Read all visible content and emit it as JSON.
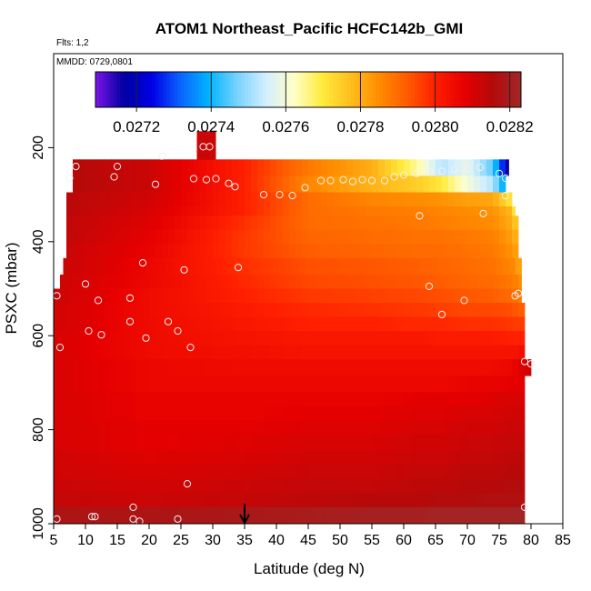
{
  "chart_data": {
    "type": "heatmap",
    "title": "ATOM1 Northeast_Pacific HCFC142b_GMI",
    "flights_label": "Flts: 1,2",
    "mmdd_label": "MMDD: 0729,0801",
    "xlabel": "Latitude (deg N)",
    "ylabel": "PSXC (mbar)",
    "xlim": [
      5,
      85
    ],
    "ylim": [
      1000,
      0
    ],
    "x_ticks": [
      "5",
      "10",
      "15",
      "20",
      "25",
      "30",
      "35",
      "40",
      "45",
      "50",
      "55",
      "60",
      "65",
      "70",
      "75",
      "80",
      "85"
    ],
    "y_ticks": [
      "200",
      "400",
      "600",
      "800",
      "1000"
    ],
    "colorbar": {
      "min": 0.02709,
      "max": 0.02823,
      "tick_values": [
        0.0272,
        0.0274,
        0.0276,
        0.0278,
        0.028,
        0.0282
      ],
      "tick_labels": [
        "0.0272",
        "0.0274",
        "0.0276",
        "0.0278",
        "0.0280",
        "0.0282"
      ],
      "colors": [
        "#7b14e8",
        "#0000a0",
        "#0000e6",
        "#0a64ff",
        "#00b4ff",
        "#78d2ff",
        "#d2eeff",
        "#ffffc8",
        "#ffeb3c",
        "#ffbe1e",
        "#ff8c00",
        "#ff5a00",
        "#ff1e00",
        "#e60000",
        "#b40a0a",
        "#a02828"
      ]
    },
    "marker_latitude": 35,
    "pressure_levels": [
      225,
      260,
      295,
      325,
      345,
      375,
      405,
      435,
      470,
      500,
      530,
      560,
      590,
      620,
      650,
      685,
      720,
      750,
      780,
      810,
      845,
      875,
      905,
      935,
      965,
      1000
    ],
    "lat_extent_by_level": [
      [
        8,
        76.5
      ],
      [
        8,
        76
      ],
      [
        7,
        77
      ],
      [
        7,
        77.5
      ],
      [
        7,
        78
      ],
      [
        7,
        78
      ],
      [
        7,
        78
      ],
      [
        6.5,
        78.5
      ],
      [
        6,
        78.5
      ],
      [
        5,
        78.5
      ],
      [
        5,
        79
      ],
      [
        5,
        79
      ],
      [
        5,
        79
      ],
      [
        5,
        79
      ],
      [
        5,
        80
      ],
      [
        5,
        79
      ],
      [
        5,
        79
      ],
      [
        5,
        79
      ],
      [
        5,
        79
      ],
      [
        5,
        79
      ],
      [
        5,
        79
      ],
      [
        5,
        79
      ],
      [
        5,
        79
      ],
      [
        5,
        79
      ],
      [
        5,
        79
      ]
    ],
    "lat_breakpoints": [
      5,
      20,
      35,
      45,
      55,
      62,
      66,
      70,
      74,
      77,
      80
    ],
    "value_rows": [
      [
        0.02816,
        0.02812,
        0.028,
        0.02788,
        0.0278,
        0.02765,
        0.02752,
        0.02758,
        0.02745,
        0.0271,
        0.0271
      ],
      [
        0.02816,
        0.02812,
        0.028,
        0.02786,
        0.02779,
        0.02775,
        0.0277,
        0.0276,
        0.02752,
        0.02728,
        0.02728
      ],
      [
        0.02815,
        0.02811,
        0.028,
        0.0279,
        0.02786,
        0.02785,
        0.02784,
        0.02782,
        0.02781,
        0.0277,
        0.0273
      ],
      [
        0.02815,
        0.0281,
        0.028,
        0.0279,
        0.02788,
        0.02787,
        0.02786,
        0.02785,
        0.02784,
        0.02778,
        0.0274
      ],
      [
        0.02814,
        0.02809,
        0.02798,
        0.0279,
        0.02789,
        0.02788,
        0.02787,
        0.02786,
        0.02785,
        0.0278,
        0.0276
      ],
      [
        0.02814,
        0.02808,
        0.02797,
        0.02791,
        0.0279,
        0.02789,
        0.02789,
        0.02788,
        0.02787,
        0.02782,
        0.0277
      ],
      [
        0.02813,
        0.02807,
        0.02797,
        0.02792,
        0.02791,
        0.0279,
        0.0279,
        0.02789,
        0.02788,
        0.02784,
        0.02775
      ],
      [
        0.02813,
        0.02806,
        0.02798,
        0.02794,
        0.02793,
        0.02792,
        0.02791,
        0.0279,
        0.02789,
        0.02786,
        0.02775
      ],
      [
        0.02812,
        0.02806,
        0.02799,
        0.02795,
        0.02794,
        0.02793,
        0.02792,
        0.02791,
        0.0279,
        0.02788,
        0.02782
      ],
      [
        0.02812,
        0.02805,
        0.028,
        0.02797,
        0.02796,
        0.02795,
        0.02794,
        0.02793,
        0.02792,
        0.0279,
        0.02786
      ],
      [
        0.02811,
        0.02805,
        0.02801,
        0.02799,
        0.02798,
        0.02797,
        0.02796,
        0.02795,
        0.02795,
        0.02794,
        0.0279
      ],
      [
        0.02811,
        0.02805,
        0.02802,
        0.028,
        0.028,
        0.02799,
        0.02799,
        0.02798,
        0.02798,
        0.02797,
        0.02796
      ],
      [
        0.0281,
        0.02805,
        0.02803,
        0.02802,
        0.02802,
        0.02802,
        0.02801,
        0.02801,
        0.02801,
        0.028,
        0.028
      ],
      [
        0.0281,
        0.02805,
        0.02804,
        0.02803,
        0.02803,
        0.02803,
        0.02803,
        0.02803,
        0.02803,
        0.02803,
        0.02805
      ],
      [
        0.0281,
        0.02806,
        0.02805,
        0.02805,
        0.02805,
        0.02805,
        0.02805,
        0.02805,
        0.02805,
        0.02806,
        0.02812
      ],
      [
        0.0281,
        0.02806,
        0.02806,
        0.02806,
        0.02806,
        0.02806,
        0.02806,
        0.02807,
        0.02807,
        0.02808,
        0.02808
      ],
      [
        0.0281,
        0.02807,
        0.02807,
        0.02807,
        0.02807,
        0.02808,
        0.02808,
        0.02808,
        0.02809,
        0.0281,
        0.0281
      ],
      [
        0.0281,
        0.02807,
        0.02807,
        0.02808,
        0.02808,
        0.02809,
        0.02809,
        0.0281,
        0.0281,
        0.02811,
        0.02811
      ],
      [
        0.0281,
        0.02808,
        0.02808,
        0.02809,
        0.02809,
        0.0281,
        0.0281,
        0.02811,
        0.02811,
        0.02812,
        0.02812
      ],
      [
        0.0281,
        0.02808,
        0.02809,
        0.0281,
        0.0281,
        0.02811,
        0.02811,
        0.02812,
        0.02812,
        0.02813,
        0.02813
      ],
      [
        0.02811,
        0.02809,
        0.0281,
        0.02811,
        0.02811,
        0.02812,
        0.02812,
        0.02813,
        0.02813,
        0.02814,
        0.02814
      ],
      [
        0.02811,
        0.0281,
        0.02811,
        0.02812,
        0.02812,
        0.02813,
        0.02813,
        0.02814,
        0.02814,
        0.02815,
        0.02815
      ],
      [
        0.02812,
        0.02811,
        0.02812,
        0.02813,
        0.02813,
        0.02814,
        0.02814,
        0.02815,
        0.02815,
        0.02816,
        0.02816
      ],
      [
        0.02813,
        0.02812,
        0.02813,
        0.02814,
        0.02815,
        0.02815,
        0.02816,
        0.02816,
        0.02817,
        0.02817,
        0.02817
      ],
      [
        0.02818,
        0.02818,
        0.02819,
        0.0282,
        0.02821,
        0.02821,
        0.02822,
        0.02822,
        0.02822,
        0.02822,
        0.02822
      ]
    ],
    "column_top": {
      "lat_range": [
        27.5,
        30.5
      ],
      "pressure_range": [
        165,
        225
      ],
      "value": 0.02812
    },
    "observations": [
      [
        8.5,
        240
      ],
      [
        15,
        240
      ],
      [
        22,
        218
      ],
      [
        28.5,
        198
      ],
      [
        29.5,
        198
      ],
      [
        7.5,
        265
      ],
      [
        14.5,
        262
      ],
      [
        21,
        278
      ],
      [
        27,
        266
      ],
      [
        29,
        268
      ],
      [
        30.5,
        266
      ],
      [
        32.5,
        276
      ],
      [
        33.5,
        283
      ],
      [
        38,
        300
      ],
      [
        40.5,
        300
      ],
      [
        42.5,
        302
      ],
      [
        44.5,
        285
      ],
      [
        47,
        270
      ],
      [
        48.5,
        270
      ],
      [
        50.5,
        268
      ],
      [
        52,
        272
      ],
      [
        53.5,
        268
      ],
      [
        55,
        270
      ],
      [
        57,
        270
      ],
      [
        58.5,
        262
      ],
      [
        60,
        258
      ],
      [
        62,
        255
      ],
      [
        64,
        252
      ],
      [
        66,
        250
      ],
      [
        68,
        246
      ],
      [
        70,
        245
      ],
      [
        72,
        242
      ],
      [
        75,
        255
      ],
      [
        76,
        265
      ],
      [
        62.5,
        345
      ],
      [
        72.5,
        340
      ],
      [
        76,
        302
      ],
      [
        5.5,
        515
      ],
      [
        10,
        490
      ],
      [
        12,
        525
      ],
      [
        17,
        520
      ],
      [
        19,
        445
      ],
      [
        25.5,
        460
      ],
      [
        34,
        455
      ],
      [
        64,
        495
      ],
      [
        69.5,
        525
      ],
      [
        77.5,
        515
      ],
      [
        78,
        510
      ],
      [
        6,
        625
      ],
      [
        10.5,
        590
      ],
      [
        12.5,
        598
      ],
      [
        17,
        570
      ],
      [
        19.5,
        605
      ],
      [
        23,
        570
      ],
      [
        24.5,
        590
      ],
      [
        26.5,
        625
      ],
      [
        66,
        555
      ],
      [
        79,
        655
      ],
      [
        80,
        660
      ],
      [
        26,
        915
      ],
      [
        5.5,
        990
      ],
      [
        11,
        985
      ],
      [
        11.5,
        985
      ],
      [
        17.5,
        965
      ],
      [
        17.5,
        990
      ],
      [
        18.5,
        995
      ],
      [
        24.5,
        990
      ],
      [
        79,
        965
      ]
    ]
  }
}
